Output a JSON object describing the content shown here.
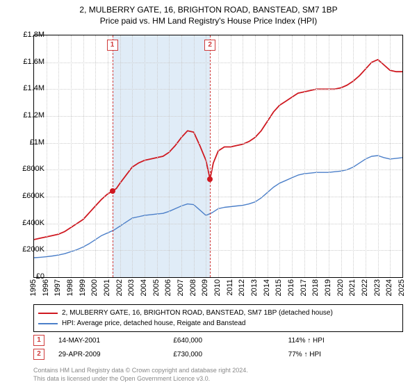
{
  "title_line1": "2, MULBERRY GATE, 16, BRIGHTON ROAD, BANSTEAD, SM7 1BP",
  "title_line2": "Price paid vs. HM Land Registry's House Price Index (HPI)",
  "chart": {
    "type": "line",
    "background_color": "#ffffff",
    "grid_color": "#cccccc",
    "border_color": "#000000",
    "shade_color": "#dbe9f6",
    "x_start_year": 1995,
    "x_end_year": 2025,
    "x_ticks": [
      1995,
      1996,
      1997,
      1998,
      1999,
      2000,
      2001,
      2002,
      2003,
      2004,
      2005,
      2006,
      2007,
      2008,
      2009,
      2010,
      2011,
      2012,
      2013,
      2014,
      2015,
      2016,
      2017,
      2018,
      2019,
      2020,
      2021,
      2022,
      2023,
      2024,
      2025
    ],
    "y_min": 0,
    "y_max": 1800000,
    "y_ticks": [
      {
        "v": 0,
        "label": "£0"
      },
      {
        "v": 200000,
        "label": "£200K"
      },
      {
        "v": 400000,
        "label": "£400K"
      },
      {
        "v": 600000,
        "label": "£600K"
      },
      {
        "v": 800000,
        "label": "£800K"
      },
      {
        "v": 1000000,
        "label": "£1M"
      },
      {
        "v": 1200000,
        "label": "£1.2M"
      },
      {
        "v": 1400000,
        "label": "£1.4M"
      },
      {
        "v": 1600000,
        "label": "£1.6M"
      },
      {
        "v": 1800000,
        "label": "£1.8M"
      }
    ],
    "series": [
      {
        "name": "2, MULBERRY GATE, 16, BRIGHTON ROAD, BANSTEAD, SM7 1BP (detached house)",
        "color": "#cf1820",
        "width": 1.8,
        "data": [
          [
            1995,
            280000
          ],
          [
            1995.5,
            290000
          ],
          [
            1996,
            300000
          ],
          [
            1996.5,
            310000
          ],
          [
            1997,
            320000
          ],
          [
            1997.5,
            340000
          ],
          [
            1998,
            370000
          ],
          [
            1998.5,
            400000
          ],
          [
            1999,
            430000
          ],
          [
            1999.5,
            480000
          ],
          [
            2000,
            530000
          ],
          [
            2000.5,
            580000
          ],
          [
            2001,
            620000
          ],
          [
            2001.37,
            640000
          ],
          [
            2001.7,
            660000
          ],
          [
            2002,
            700000
          ],
          [
            2002.5,
            760000
          ],
          [
            2003,
            820000
          ],
          [
            2003.5,
            850000
          ],
          [
            2004,
            870000
          ],
          [
            2004.5,
            880000
          ],
          [
            2005,
            890000
          ],
          [
            2005.5,
            900000
          ],
          [
            2006,
            930000
          ],
          [
            2006.5,
            980000
          ],
          [
            2007,
            1040000
          ],
          [
            2007.5,
            1090000
          ],
          [
            2008,
            1080000
          ],
          [
            2008.5,
            980000
          ],
          [
            2009,
            870000
          ],
          [
            2009.33,
            730000
          ],
          [
            2009.6,
            850000
          ],
          [
            2010,
            940000
          ],
          [
            2010.5,
            970000
          ],
          [
            2011,
            970000
          ],
          [
            2011.5,
            980000
          ],
          [
            2012,
            990000
          ],
          [
            2012.5,
            1010000
          ],
          [
            2013,
            1040000
          ],
          [
            2013.5,
            1090000
          ],
          [
            2014,
            1160000
          ],
          [
            2014.5,
            1230000
          ],
          [
            2015,
            1280000
          ],
          [
            2015.5,
            1310000
          ],
          [
            2016,
            1340000
          ],
          [
            2016.5,
            1370000
          ],
          [
            2017,
            1380000
          ],
          [
            2017.5,
            1390000
          ],
          [
            2018,
            1400000
          ],
          [
            2018.5,
            1400000
          ],
          [
            2019,
            1400000
          ],
          [
            2019.5,
            1400000
          ],
          [
            2020,
            1410000
          ],
          [
            2020.5,
            1430000
          ],
          [
            2021,
            1460000
          ],
          [
            2021.5,
            1500000
          ],
          [
            2022,
            1550000
          ],
          [
            2022.5,
            1600000
          ],
          [
            2023,
            1620000
          ],
          [
            2023.5,
            1580000
          ],
          [
            2024,
            1540000
          ],
          [
            2024.5,
            1530000
          ],
          [
            2025,
            1530000
          ]
        ]
      },
      {
        "name": "HPI: Average price, detached house, Reigate and Banstead",
        "color": "#4b7fc9",
        "width": 1.4,
        "data": [
          [
            1995,
            145000
          ],
          [
            1995.5,
            148000
          ],
          [
            1996,
            152000
          ],
          [
            1996.5,
            158000
          ],
          [
            1997,
            165000
          ],
          [
            1997.5,
            175000
          ],
          [
            1998,
            190000
          ],
          [
            1998.5,
            205000
          ],
          [
            1999,
            225000
          ],
          [
            1999.5,
            250000
          ],
          [
            2000,
            280000
          ],
          [
            2000.5,
            310000
          ],
          [
            2001,
            330000
          ],
          [
            2001.5,
            350000
          ],
          [
            2002,
            380000
          ],
          [
            2002.5,
            410000
          ],
          [
            2003,
            440000
          ],
          [
            2003.5,
            450000
          ],
          [
            2004,
            460000
          ],
          [
            2004.5,
            465000
          ],
          [
            2005,
            470000
          ],
          [
            2005.5,
            475000
          ],
          [
            2006,
            490000
          ],
          [
            2006.5,
            510000
          ],
          [
            2007,
            530000
          ],
          [
            2007.5,
            545000
          ],
          [
            2008,
            540000
          ],
          [
            2008.5,
            500000
          ],
          [
            2009,
            460000
          ],
          [
            2009.5,
            480000
          ],
          [
            2010,
            510000
          ],
          [
            2010.5,
            520000
          ],
          [
            2011,
            525000
          ],
          [
            2011.5,
            530000
          ],
          [
            2012,
            535000
          ],
          [
            2012.5,
            545000
          ],
          [
            2013,
            560000
          ],
          [
            2013.5,
            590000
          ],
          [
            2014,
            630000
          ],
          [
            2014.5,
            670000
          ],
          [
            2015,
            700000
          ],
          [
            2015.5,
            720000
          ],
          [
            2016,
            740000
          ],
          [
            2016.5,
            760000
          ],
          [
            2017,
            770000
          ],
          [
            2017.5,
            775000
          ],
          [
            2018,
            780000
          ],
          [
            2018.5,
            780000
          ],
          [
            2019,
            780000
          ],
          [
            2019.5,
            785000
          ],
          [
            2020,
            790000
          ],
          [
            2020.5,
            800000
          ],
          [
            2021,
            820000
          ],
          [
            2021.5,
            850000
          ],
          [
            2022,
            880000
          ],
          [
            2022.5,
            900000
          ],
          [
            2023,
            905000
          ],
          [
            2023.5,
            890000
          ],
          [
            2024,
            880000
          ],
          [
            2024.5,
            885000
          ],
          [
            2025,
            890000
          ]
        ]
      }
    ],
    "events": [
      {
        "n": "1",
        "year": 2001.37,
        "price": 640000
      },
      {
        "n": "2",
        "year": 2009.33,
        "price": 730000
      }
    ],
    "event_line_color": "#cf3a3a",
    "event_dot_color": "#cf1820"
  },
  "legend": {
    "items": [
      {
        "color": "#cf1820",
        "label": "2, MULBERRY GATE, 16, BRIGHTON ROAD, BANSTEAD, SM7 1BP (detached house)"
      },
      {
        "color": "#4b7fc9",
        "label": "HPI: Average price, detached house, Reigate and Banstead"
      }
    ]
  },
  "datapoints": [
    {
      "n": "1",
      "date": "14-MAY-2001",
      "price": "£640,000",
      "delta": "114% ↑ HPI"
    },
    {
      "n": "2",
      "date": "29-APR-2009",
      "price": "£730,000",
      "delta": "77% ↑ HPI"
    }
  ],
  "license_line1": "Contains HM Land Registry data © Crown copyright and database right 2024.",
  "license_line2": "This data is licensed under the Open Government Licence v3.0."
}
